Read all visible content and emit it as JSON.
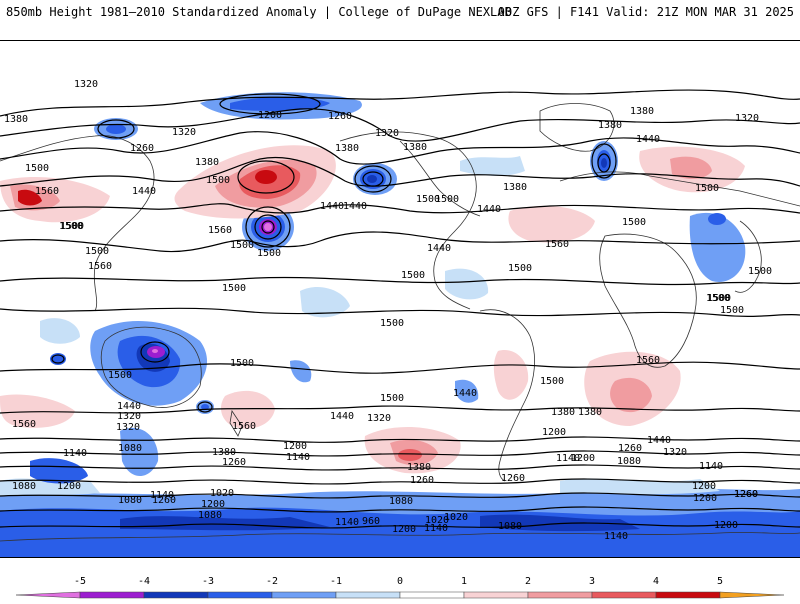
{
  "header": {
    "left": "850mb Height 1981–2010 Standardized Anomaly | College of DuPage NEXLAB",
    "right": "00Z GFS | F141 Valid: 21Z MON MAR 31 2025"
  },
  "colorbar": {
    "ticks": [
      "-5",
      "-4",
      "-3",
      "-2",
      "-1",
      "0",
      "1",
      "2",
      "3",
      "4",
      "5"
    ],
    "colors": [
      "#e070e0",
      "#9c1ed0",
      "#1238b8",
      "#2a5ee8",
      "#6f9ff5",
      "#c7e0f7",
      "#ffffff",
      "#f8d2d4",
      "#f09ca0",
      "#e85a5e",
      "#c80a10",
      "#f3a020"
    ]
  },
  "contour_labels": [
    {
      "id": "a1",
      "text": "1320"
    },
    {
      "id": "a2",
      "text": "1380"
    },
    {
      "id": "a3",
      "text": "1320"
    },
    {
      "id": "a4",
      "text": "1260"
    },
    {
      "id": "a5",
      "text": "1200"
    },
    {
      "id": "a6",
      "text": "1260"
    },
    {
      "id": "a7",
      "text": "1320"
    },
    {
      "id": "a8",
      "text": "1380"
    },
    {
      "id": "a9",
      "text": "1380"
    },
    {
      "id": "a10",
      "text": "1440"
    },
    {
      "id": "a11",
      "text": "1320"
    },
    {
      "id": "a12",
      "text": "1380"
    },
    {
      "id": "a13",
      "text": "1380"
    },
    {
      "id": "a14",
      "text": "1500"
    },
    {
      "id": "a15",
      "text": "1440"
    },
    {
      "id": "a16",
      "text": "1380"
    },
    {
      "id": "a17",
      "text": "1500"
    },
    {
      "id": "a18",
      "text": "1560"
    },
    {
      "id": "a19",
      "text": "1500"
    },
    {
      "id": "a20",
      "text": "1500"
    },
    {
      "id": "a21",
      "text": "1560"
    },
    {
      "id": "a22",
      "text": "1440"
    },
    {
      "id": "a23",
      "text": "1500"
    },
    {
      "id": "a24",
      "text": "1500"
    },
    {
      "id": "a25",
      "text": "1440"
    },
    {
      "id": "a26",
      "text": "1500"
    },
    {
      "id": "a27",
      "text": "1500"
    },
    {
      "id": "a28",
      "text": "1560"
    },
    {
      "id": "a29",
      "text": "1500"
    },
    {
      "id": "a30",
      "text": "1500"
    },
    {
      "id": "a31",
      "text": "1500"
    },
    {
      "id": "a32",
      "text": "1500"
    },
    {
      "id": "a33",
      "text": "1500"
    },
    {
      "id": "a34",
      "text": "1500"
    },
    {
      "id": "a35",
      "text": "1500"
    },
    {
      "id": "a36",
      "text": "1500"
    },
    {
      "id": "a37",
      "text": "1500"
    },
    {
      "id": "a38",
      "text": "1560"
    },
    {
      "id": "a39",
      "text": "1500"
    },
    {
      "id": "a40",
      "text": "1560"
    },
    {
      "id": "a41",
      "text": "1440"
    },
    {
      "id": "a42",
      "text": "1440"
    },
    {
      "id": "a43",
      "text": "1380"
    },
    {
      "id": "a44",
      "text": "1320"
    },
    {
      "id": "a45",
      "text": "1560"
    },
    {
      "id": "a46",
      "text": "1320"
    },
    {
      "id": "a47",
      "text": "1080"
    },
    {
      "id": "a48",
      "text": "1440"
    },
    {
      "id": "a49",
      "text": "1320"
    },
    {
      "id": "a50",
      "text": "1260"
    },
    {
      "id": "a51",
      "text": "1140"
    },
    {
      "id": "a52",
      "text": "1380"
    },
    {
      "id": "a53",
      "text": "1200"
    },
    {
      "id": "a54",
      "text": "1140"
    },
    {
      "id": "a55",
      "text": "1260"
    },
    {
      "id": "a56",
      "text": "1380"
    },
    {
      "id": "a57",
      "text": "1260"
    },
    {
      "id": "a58",
      "text": "1140"
    },
    {
      "id": "a59",
      "text": "1200"
    },
    {
      "id": "a60",
      "text": "1080"
    },
    {
      "id": "a61",
      "text": "1200"
    },
    {
      "id": "a62",
      "text": "1080"
    },
    {
      "id": "a63",
      "text": "1260"
    },
    {
      "id": "a64",
      "text": "1200"
    },
    {
      "id": "a65",
      "text": "1080"
    },
    {
      "id": "a66",
      "text": "1020"
    },
    {
      "id": "a67",
      "text": "1140"
    },
    {
      "id": "a68",
      "text": "1020"
    },
    {
      "id": "a69",
      "text": "1080"
    },
    {
      "id": "a70",
      "text": "960"
    },
    {
      "id": "a71",
      "text": "1200"
    },
    {
      "id": "a72",
      "text": "1140"
    },
    {
      "id": "a73",
      "text": "1020"
    },
    {
      "id": "a74",
      "text": "1080"
    },
    {
      "id": "a75",
      "text": "1140"
    },
    {
      "id": "a76",
      "text": "1200"
    },
    {
      "id": "a77",
      "text": "1260"
    },
    {
      "id": "a78",
      "text": "1380"
    },
    {
      "id": "a79",
      "text": "1440"
    },
    {
      "id": "a80",
      "text": "1320"
    },
    {
      "id": "a81",
      "text": "1260"
    },
    {
      "id": "a82",
      "text": "1200"
    },
    {
      "id": "a83",
      "text": "1080"
    },
    {
      "id": "a84",
      "text": "1140"
    },
    {
      "id": "a85",
      "text": "1200"
    },
    {
      "id": "a86",
      "text": "1260"
    },
    {
      "id": "a87",
      "text": "1500"
    },
    {
      "id": "a88",
      "text": "1500"
    },
    {
      "id": "a89",
      "text": "1380"
    },
    {
      "id": "a90",
      "text": "1500"
    },
    {
      "id": "a91",
      "text": "1440"
    },
    {
      "id": "a92",
      "text": "1560"
    },
    {
      "id": "a93",
      "text": "1140"
    },
    {
      "id": "a94",
      "text": "1200"
    },
    {
      "id": "a95",
      "text": "1500"
    },
    {
      "id": "a96",
      "text": "1500"
    },
    {
      "id": "a97",
      "text": "1440"
    }
  ]
}
